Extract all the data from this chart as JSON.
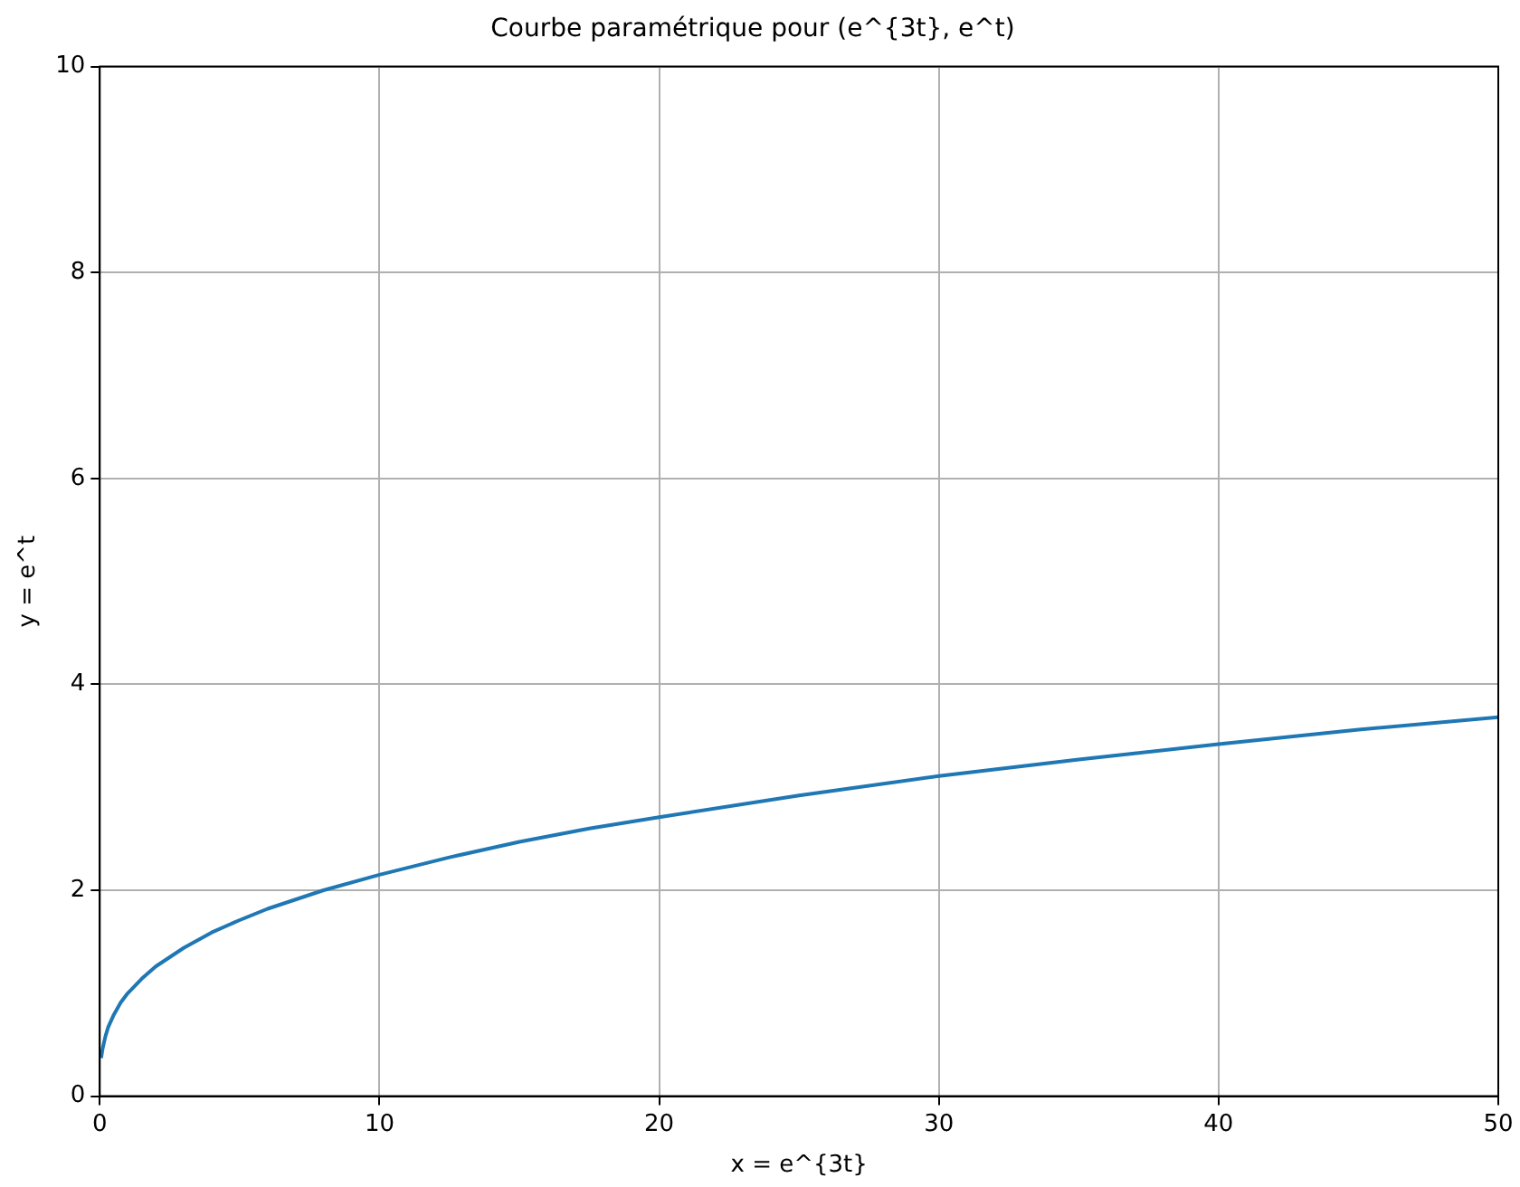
{
  "chart_data": {
    "type": "line",
    "title": "Courbe paramétrique pour (e^{3t}, e^t)",
    "xlabel": "x = e^{3t}",
    "ylabel": "y = e^t",
    "x": [
      0.05,
      0.1,
      0.2,
      0.3,
      0.5,
      0.75,
      1,
      1.5,
      2,
      3,
      4,
      5,
      6,
      8,
      10,
      12.5,
      15,
      17.5,
      20,
      25,
      30,
      35,
      40,
      45,
      50
    ],
    "series": [
      {
        "color": "#1f77b4",
        "values": [
          0.37,
          0.46,
          0.58,
          0.67,
          0.79,
          0.91,
          1,
          1.14,
          1.26,
          1.44,
          1.59,
          1.71,
          1.82,
          2,
          2.15,
          2.32,
          2.47,
          2.6,
          2.71,
          2.92,
          3.11,
          3.27,
          3.42,
          3.56,
          3.68
        ]
      }
    ],
    "xlim": [
      0,
      50
    ],
    "xticks": [
      0,
      10,
      20,
      30,
      40,
      50
    ],
    "ylim": [
      0,
      10
    ],
    "yticks": [
      0,
      2,
      4,
      6,
      8,
      10
    ],
    "grid": true,
    "legend": false,
    "marker": "none",
    "line_style": "solid"
  }
}
